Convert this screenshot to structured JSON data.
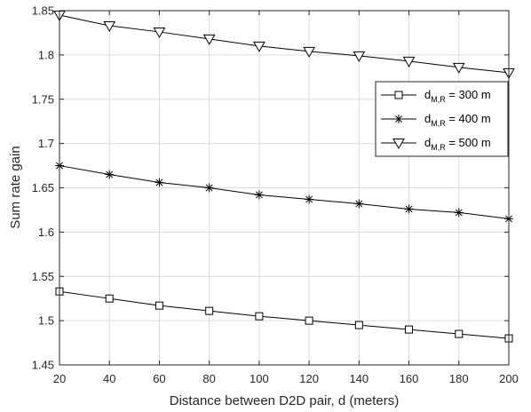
{
  "chart_data": {
    "type": "line",
    "title": "",
    "xlabel": "Distance between D2D pair, d (meters)",
    "ylabel": "Sum rate gain",
    "xlim": [
      20,
      200
    ],
    "ylim": [
      1.45,
      1.85
    ],
    "x_ticks": [
      "20",
      "40",
      "60",
      "80",
      "100",
      "120",
      "140",
      "160",
      "180",
      "200"
    ],
    "y_ticks": [
      "1.45",
      "1.5",
      "1.55",
      "1.6",
      "1.65",
      "1.7",
      "1.75",
      "1.8",
      "1.85"
    ],
    "grid": true,
    "legend_position": "top-right",
    "x": [
      20,
      40,
      60,
      80,
      100,
      120,
      140,
      160,
      180,
      200
    ],
    "series": [
      {
        "legend_main": "d",
        "legend_sub": "M,R",
        "legend_tail": " = 300 m",
        "marker": "square",
        "values": [
          1.533,
          1.525,
          1.517,
          1.511,
          1.505,
          1.5,
          1.495,
          1.49,
          1.485,
          1.48
        ]
      },
      {
        "legend_main": "d",
        "legend_sub": "M,R",
        "legend_tail": " = 400 m",
        "marker": "asterisk",
        "values": [
          1.675,
          1.665,
          1.656,
          1.65,
          1.642,
          1.637,
          1.632,
          1.626,
          1.622,
          1.615
        ]
      },
      {
        "legend_main": "d",
        "legend_sub": "M,R",
        "legend_tail": " = 500 m",
        "marker": "triangle-down",
        "values": [
          1.845,
          1.833,
          1.826,
          1.818,
          1.81,
          1.804,
          1.799,
          1.793,
          1.786,
          1.78
        ]
      }
    ],
    "colors": {
      "line": "#000000",
      "grid": "#dcdcdc",
      "axes": "#262626",
      "background": "#ffffff"
    }
  }
}
